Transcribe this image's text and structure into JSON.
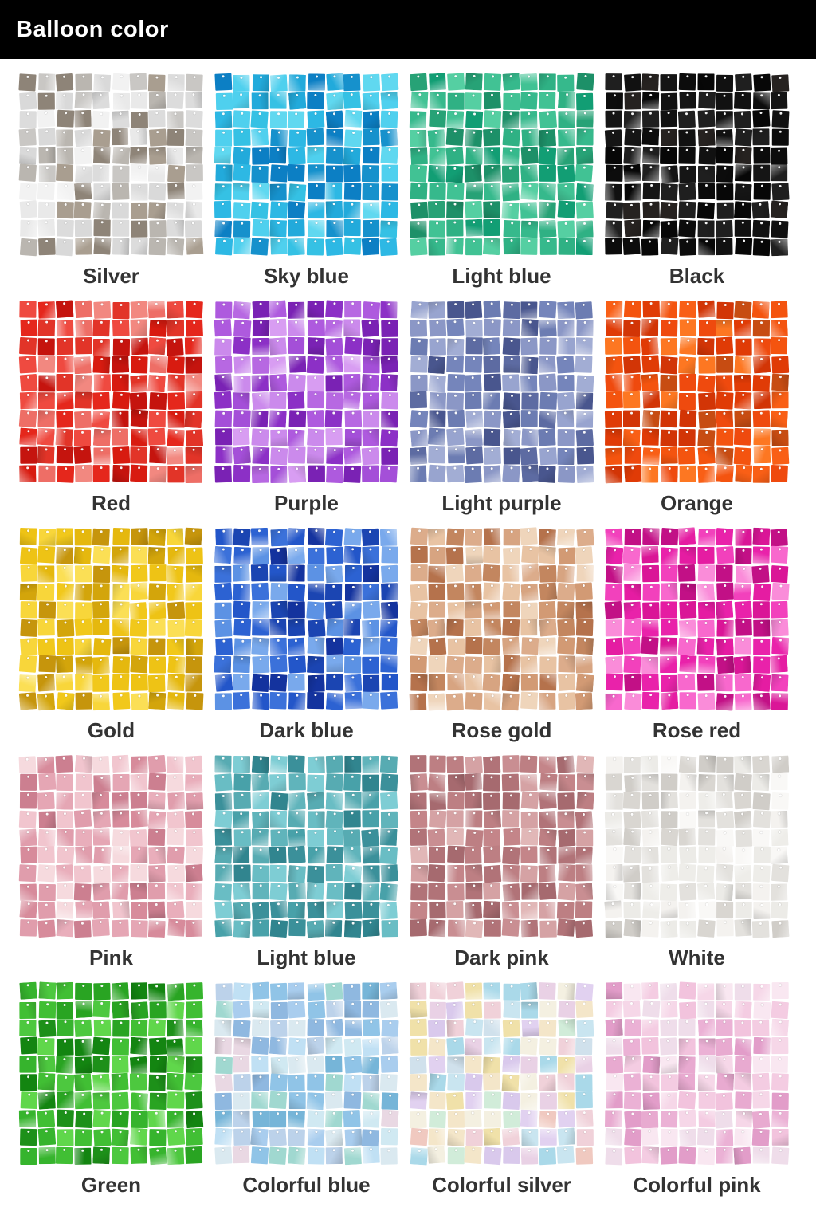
{
  "header": {
    "title": "Balloon color",
    "bg": "#000000",
    "text_color": "#ffffff"
  },
  "panel_grid": {
    "rows": 10,
    "cols": 10
  },
  "label_color": "#333333",
  "colors": [
    {
      "label": "Silver",
      "shades": [
        "#e9e9e9",
        "#d9d9d9",
        "#c9c7c4",
        "#f2f2f2",
        "#bab6b0",
        "#a99e90",
        "#8e8478",
        "#dcdcdc"
      ]
    },
    {
      "label": "Sky blue",
      "shades": [
        "#35c1e4",
        "#4fd0ee",
        "#22aadb",
        "#60d8f0",
        "#1691cc",
        "#2db8e4",
        "#0c7fc4"
      ]
    },
    {
      "label": "Light blue",
      "shades": [
        "#2fb184",
        "#27a276",
        "#41c294",
        "#1d9068",
        "#55cfa2",
        "#129e74",
        "#36b98c"
      ]
    },
    {
      "label": "Black",
      "shades": [
        "#151515",
        "#0c0c0c",
        "#1f1f1f",
        "#070707",
        "#262220",
        "#111111"
      ]
    },
    {
      "label": "Red",
      "shades": [
        "#e5271c",
        "#d81b10",
        "#ef4a40",
        "#ee6e66",
        "#c5140e",
        "#f28880",
        "#e23428"
      ]
    },
    {
      "label": "Purple",
      "shades": [
        "#a44fd8",
        "#b768e2",
        "#cb8aec",
        "#8c30c6",
        "#d89df2",
        "#7a22b4",
        "#ae5ade"
      ]
    },
    {
      "label": "Light purple",
      "shades": [
        "#8b97c6",
        "#7585bb",
        "#a2add4",
        "#5d6ba2",
        "#49568e",
        "#98a4cf",
        "#6c7cb2"
      ]
    },
    {
      "label": "Orange",
      "shades": [
        "#ef4a0e",
        "#e03b06",
        "#f95f16",
        "#d23506",
        "#fd7722",
        "#c74c12",
        "#f4540f"
      ]
    },
    {
      "label": "Gold",
      "shades": [
        "#f1c81b",
        "#e5b80e",
        "#f8d63a",
        "#d3a50b",
        "#c6950c",
        "#fbdf55",
        "#eec315"
      ]
    },
    {
      "label": "Dark blue",
      "shades": [
        "#2356c9",
        "#1b45b2",
        "#3b71da",
        "#5c92e4",
        "#14339e",
        "#79a9ec",
        "#2c62d2"
      ]
    },
    {
      "label": "Rose gold",
      "shades": [
        "#dcac8b",
        "#d29a74",
        "#e8c3a3",
        "#c3865f",
        "#efd5bb",
        "#b5724c",
        "#d7a481"
      ]
    },
    {
      "label": "Rose red",
      "shades": [
        "#e922aa",
        "#da1697",
        "#f241bc",
        "#f868cd",
        "#c21086",
        "#fa8cd9",
        "#e51ca2"
      ]
    },
    {
      "label": "Pink",
      "shades": [
        "#e9aebb",
        "#e09dac",
        "#f1c5ce",
        "#d78b9b",
        "#f6dade",
        "#cc7f90",
        "#e5a6b4"
      ]
    },
    {
      "label": "Light blue",
      "shades": [
        "#57abb2",
        "#48a1a9",
        "#69bdc4",
        "#3b909a",
        "#7ecdd4",
        "#31858f",
        "#60b4bb"
      ]
    },
    {
      "label": "Dark pink",
      "shades": [
        "#c98e92",
        "#bd7f83",
        "#d5a2a4",
        "#b17378",
        "#e1b7b7",
        "#a66a6f",
        "#c48589"
      ]
    },
    {
      "label": "White",
      "shades": [
        "#f4f2ef",
        "#ecebe7",
        "#e3e1dd",
        "#d9d6d1",
        "#f9f8f6",
        "#d0cdc8",
        "#eeede9"
      ]
    },
    {
      "label": "Green",
      "shades": [
        "#36b42d",
        "#29a422",
        "#4dc83f",
        "#1d9019",
        "#60d74b",
        "#138511",
        "#41bf34"
      ]
    },
    {
      "label": "Colorful blue",
      "shades": [
        "#a9cdee",
        "#90c4e7",
        "#c0e0f4",
        "#76b5d8",
        "#d0e9f2",
        "#e9d8e3",
        "#a0d8d0",
        "#dae9f0",
        "#8fb8e0",
        "#bcd2ea"
      ]
    },
    {
      "label": "Colorful silver",
      "shades": [
        "#e9d1e5",
        "#d0e1ec",
        "#f4e6c9",
        "#d1ecd9",
        "#e1d1f0",
        "#f0d1d9",
        "#c9e5f0",
        "#f4f0e1",
        "#aad9e9",
        "#f0e1a9",
        "#d9c9ec",
        "#f0c9c0"
      ]
    },
    {
      "label": "Colorful pink",
      "shades": [
        "#f2c3dd",
        "#ebb1d5",
        "#f6d7e8",
        "#e29dc9",
        "#f9e7f1",
        "#efddea",
        "#e8aad0",
        "#f4cce2"
      ]
    }
  ]
}
